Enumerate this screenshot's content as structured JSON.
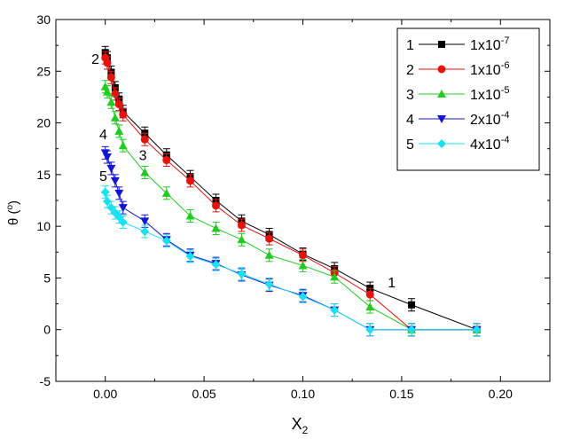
{
  "chart_data": {
    "type": "line",
    "title": "",
    "xlabel": "X",
    "xlabel_sub": "2",
    "ylabel": "θ (",
    "ylabel_sup": "o",
    "ylabel_close": ")",
    "xlim": [
      -0.025,
      0.225
    ],
    "ylim": [
      -5,
      30
    ],
    "xticks": [
      "0.00",
      "0.05",
      "0.10",
      "0.15",
      "0.20"
    ],
    "yticks": [
      "-5",
      "0",
      "5",
      "10",
      "15",
      "20",
      "25",
      "30"
    ],
    "legend_position": "top-right",
    "series": [
      {
        "name": "1x10-7",
        "num": "1",
        "mantissa": "1x10",
        "exp": "-7",
        "color": "#000000",
        "marker": "square",
        "x": [
          0.0,
          0.001,
          0.003,
          0.005,
          0.007,
          0.009,
          0.02,
          0.031,
          0.043,
          0.056,
          0.069,
          0.083,
          0.1,
          0.116,
          0.134,
          0.155,
          0.188
        ],
        "y": [
          26.8,
          26.3,
          24.9,
          23.4,
          22.3,
          21.1,
          19.0,
          16.9,
          14.8,
          12.5,
          10.5,
          9.2,
          7.3,
          5.9,
          4.0,
          2.4,
          0.0
        ]
      },
      {
        "name": "1x10-6",
        "num": "2",
        "mantissa": "1x10",
        "exp": "-6",
        "color": "#e8120d",
        "marker": "circle",
        "x": [
          0.0,
          0.001,
          0.003,
          0.005,
          0.007,
          0.009,
          0.02,
          0.031,
          0.043,
          0.056,
          0.069,
          0.083,
          0.1,
          0.116,
          0.134,
          0.155,
          0.188
        ],
        "y": [
          26.3,
          25.8,
          24.4,
          22.8,
          21.8,
          20.8,
          18.4,
          16.4,
          14.4,
          12.0,
          10.1,
          8.8,
          7.2,
          5.5,
          3.4,
          0.0,
          0.0
        ]
      },
      {
        "name": "1x10-5",
        "num": "3",
        "mantissa": "1x10",
        "exp": "-5",
        "color": "#1fcc1f",
        "marker": "triangle-up",
        "x": [
          0.0,
          0.001,
          0.003,
          0.005,
          0.007,
          0.009,
          0.02,
          0.031,
          0.043,
          0.056,
          0.069,
          0.083,
          0.1,
          0.116,
          0.134,
          0.155,
          0.188
        ],
        "y": [
          23.5,
          23.0,
          22.0,
          20.5,
          19.2,
          17.8,
          15.2,
          13.2,
          11.0,
          9.8,
          8.7,
          7.2,
          6.2,
          5.1,
          2.2,
          0.0,
          0.0
        ]
      },
      {
        "name": "2x10-4",
        "num": "4",
        "mantissa": "2x10",
        "exp": "-4",
        "color": "#1414d4",
        "marker": "triangle-down",
        "x": [
          0.0,
          0.001,
          0.003,
          0.005,
          0.007,
          0.009,
          0.02,
          0.031,
          0.043,
          0.056,
          0.069,
          0.083,
          0.1,
          0.116,
          0.134,
          0.155,
          0.188
        ],
        "y": [
          17.1,
          16.7,
          15.6,
          14.4,
          13.2,
          11.8,
          10.5,
          8.7,
          7.2,
          6.4,
          5.3,
          4.3,
          3.3,
          1.9,
          0.0,
          0.0,
          0.0
        ]
      },
      {
        "name": "4x10-4",
        "num": "5",
        "mantissa": "4x10",
        "exp": "-4",
        "color": "#19e0f2",
        "marker": "diamond",
        "x": [
          0.0,
          0.001,
          0.003,
          0.005,
          0.007,
          0.009,
          0.02,
          0.031,
          0.043,
          0.056,
          0.069,
          0.083,
          0.1,
          0.116,
          0.134,
          0.155,
          0.188
        ],
        "y": [
          13.3,
          12.4,
          11.8,
          11.3,
          10.9,
          10.4,
          9.5,
          8.6,
          7.1,
          6.3,
          5.4,
          4.4,
          3.2,
          1.9,
          0.0,
          0.0,
          0.0
        ]
      }
    ],
    "curve_labels": [
      {
        "text": "1",
        "x": 0.143,
        "y": 4.1
      },
      {
        "text": "2",
        "x": -0.007,
        "y": 25.7
      },
      {
        "text": "3",
        "x": 0.017,
        "y": 16.4
      },
      {
        "text": "4",
        "x": -0.003,
        "y": 18.4
      },
      {
        "text": "5",
        "x": -0.003,
        "y": 14.4
      }
    ]
  }
}
